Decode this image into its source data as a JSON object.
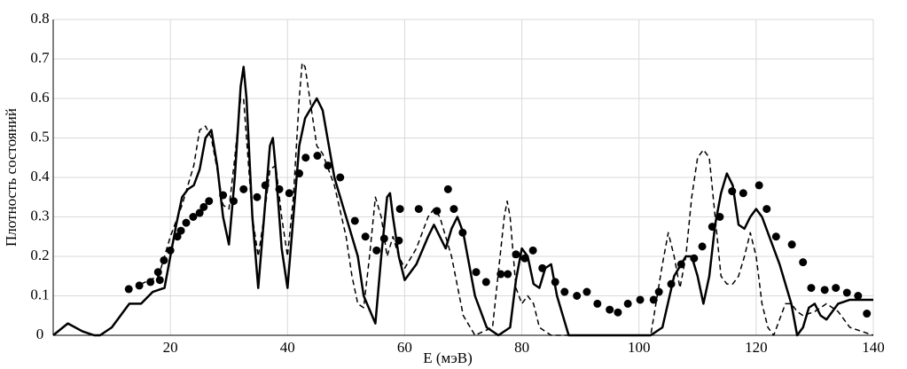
{
  "chart_data": {
    "type": "line",
    "xlabel": "E (мэВ)",
    "ylabel": "Плотность состояний",
    "xlim": [
      0,
      140
    ],
    "ylim": [
      0,
      0.8
    ],
    "xticks": [
      20,
      40,
      60,
      80,
      100,
      120,
      140
    ],
    "yticks": [
      0,
      0.1,
      0.2,
      0.3,
      0.4,
      0.5,
      0.6,
      0.7,
      0.8
    ],
    "grid": true,
    "series": [
      {
        "color": "#000000",
        "line": "solid",
        "x": [
          0,
          2.5,
          5,
          7,
          8,
          10,
          12,
          13,
          15,
          17,
          19,
          20,
          21,
          22,
          23,
          24,
          25,
          26,
          27,
          28,
          29,
          30,
          31,
          32,
          32.5,
          33,
          34,
          35,
          36,
          37,
          37.5,
          38,
          39,
          40,
          41,
          42,
          43,
          45,
          46,
          48,
          50,
          52,
          53,
          55,
          56,
          57,
          57.5,
          58,
          59,
          60,
          62,
          64,
          65,
          66,
          67,
          68,
          69,
          70,
          72,
          74,
          76,
          78,
          79,
          80,
          81,
          82,
          83,
          84,
          85,
          86,
          88,
          102,
          104,
          106,
          108,
          109,
          110,
          111,
          112,
          113,
          114,
          115,
          116,
          117,
          118,
          119,
          120,
          121,
          122,
          124,
          126,
          127,
          128,
          129,
          130,
          131,
          132,
          134,
          136,
          140
        ],
        "values": [
          0,
          0.03,
          0.01,
          0,
          0,
          0.02,
          0.06,
          0.08,
          0.08,
          0.11,
          0.12,
          0.2,
          0.28,
          0.35,
          0.37,
          0.38,
          0.42,
          0.5,
          0.52,
          0.43,
          0.3,
          0.23,
          0.4,
          0.63,
          0.68,
          0.6,
          0.3,
          0.12,
          0.3,
          0.48,
          0.5,
          0.42,
          0.22,
          0.12,
          0.3,
          0.48,
          0.55,
          0.6,
          0.57,
          0.4,
          0.3,
          0.2,
          0.1,
          0.03,
          0.2,
          0.35,
          0.36,
          0.3,
          0.2,
          0.14,
          0.18,
          0.25,
          0.28,
          0.25,
          0.22,
          0.27,
          0.3,
          0.26,
          0.1,
          0.02,
          0,
          0.02,
          0.14,
          0.22,
          0.2,
          0.13,
          0.12,
          0.17,
          0.18,
          0.1,
          0,
          0,
          0.02,
          0.15,
          0.2,
          0.2,
          0.15,
          0.08,
          0.15,
          0.28,
          0.36,
          0.41,
          0.38,
          0.28,
          0.27,
          0.3,
          0.32,
          0.3,
          0.26,
          0.18,
          0.08,
          0,
          0.02,
          0.07,
          0.08,
          0.05,
          0.04,
          0.08,
          0.09,
          0.09
        ]
      },
      {
        "color": "#000000",
        "line": "dashed",
        "x": [
          15,
          18,
          20,
          22,
          24,
          25,
          26,
          27,
          28,
          29,
          30,
          31,
          32,
          32.5,
          33,
          34,
          35,
          36,
          37,
          38,
          39,
          40,
          41,
          42,
          42.5,
          43,
          44,
          45,
          46,
          48,
          50,
          51,
          52,
          53,
          54,
          55,
          56,
          57,
          58,
          59,
          60,
          62,
          64,
          65,
          66,
          67,
          68,
          70,
          72,
          75,
          77,
          77.5,
          78,
          79,
          80,
          81,
          82,
          83,
          85,
          102,
          104,
          105,
          106,
          107,
          108,
          109,
          110,
          111,
          112,
          113,
          114,
          115,
          116,
          117,
          118,
          119,
          120,
          121,
          122,
          123,
          125,
          126,
          127,
          128,
          130,
          132,
          134,
          136,
          138,
          140
        ],
        "values": [
          0.13,
          0.15,
          0.25,
          0.33,
          0.43,
          0.52,
          0.53,
          0.5,
          0.42,
          0.33,
          0.32,
          0.45,
          0.6,
          0.6,
          0.5,
          0.3,
          0.2,
          0.3,
          0.42,
          0.43,
          0.3,
          0.2,
          0.35,
          0.6,
          0.69,
          0.68,
          0.58,
          0.48,
          0.46,
          0.38,
          0.25,
          0.15,
          0.08,
          0.07,
          0.2,
          0.35,
          0.3,
          0.2,
          0.25,
          0.2,
          0.17,
          0.22,
          0.3,
          0.32,
          0.3,
          0.25,
          0.2,
          0.05,
          0,
          0.02,
          0.3,
          0.34,
          0.3,
          0.12,
          0.08,
          0.1,
          0.08,
          0.02,
          0,
          0,
          0.18,
          0.26,
          0.2,
          0.12,
          0.2,
          0.35,
          0.45,
          0.47,
          0.45,
          0.3,
          0.15,
          0.13,
          0.13,
          0.15,
          0.2,
          0.26,
          0.2,
          0.08,
          0.02,
          0,
          0.08,
          0.08,
          0.06,
          0.05,
          0.06,
          0.08,
          0.06,
          0.02,
          0.01,
          0
        ]
      },
      {
        "color": "#000000",
        "marker": "circle",
        "x": [
          12.9,
          14.7,
          16.6,
          17.9,
          18.2,
          18.9,
          20,
          21.2,
          21.8,
          22.7,
          23.9,
          25,
          25.7,
          26.6,
          29,
          30.8,
          32.5,
          34.8,
          36.2,
          38.6,
          40.3,
          42,
          43.1,
          45.1,
          46.9,
          49,
          51.5,
          53.3,
          55.2,
          56.5,
          59,
          59.2,
          62.4,
          65.5,
          67.4,
          68.4,
          69.9,
          72.2,
          73.9,
          76.4,
          77.6,
          79,
          80.5,
          81.9,
          83.5,
          85.7,
          87.3,
          89.4,
          91.1,
          92.9,
          95,
          96.4,
          98.1,
          100.2,
          102.5,
          103.4,
          105.5,
          107.2,
          109.4,
          110.8,
          112.5,
          113.8,
          115.9,
          117.8,
          120.5,
          121.8,
          123.4,
          126.1,
          128,
          129.4,
          131.7,
          133.6,
          135.5,
          137.4,
          138.9
        ],
        "values": [
          0.117,
          0.126,
          0.135,
          0.16,
          0.14,
          0.19,
          0.215,
          0.25,
          0.265,
          0.285,
          0.3,
          0.31,
          0.325,
          0.34,
          0.355,
          0.34,
          0.37,
          0.35,
          0.38,
          0.37,
          0.36,
          0.41,
          0.45,
          0.455,
          0.43,
          0.4,
          0.29,
          0.25,
          0.215,
          0.245,
          0.24,
          0.32,
          0.32,
          0.315,
          0.37,
          0.32,
          0.26,
          0.16,
          0.135,
          0.155,
          0.155,
          0.205,
          0.195,
          0.215,
          0.17,
          0.135,
          0.11,
          0.1,
          0.11,
          0.08,
          0.065,
          0.058,
          0.08,
          0.09,
          0.09,
          0.11,
          0.13,
          0.18,
          0.195,
          0.225,
          0.275,
          0.3,
          0.365,
          0.36,
          0.38,
          0.32,
          0.25,
          0.23,
          0.185,
          0.12,
          0.115,
          0.12,
          0.108,
          0.1,
          0.055
        ]
      }
    ]
  }
}
